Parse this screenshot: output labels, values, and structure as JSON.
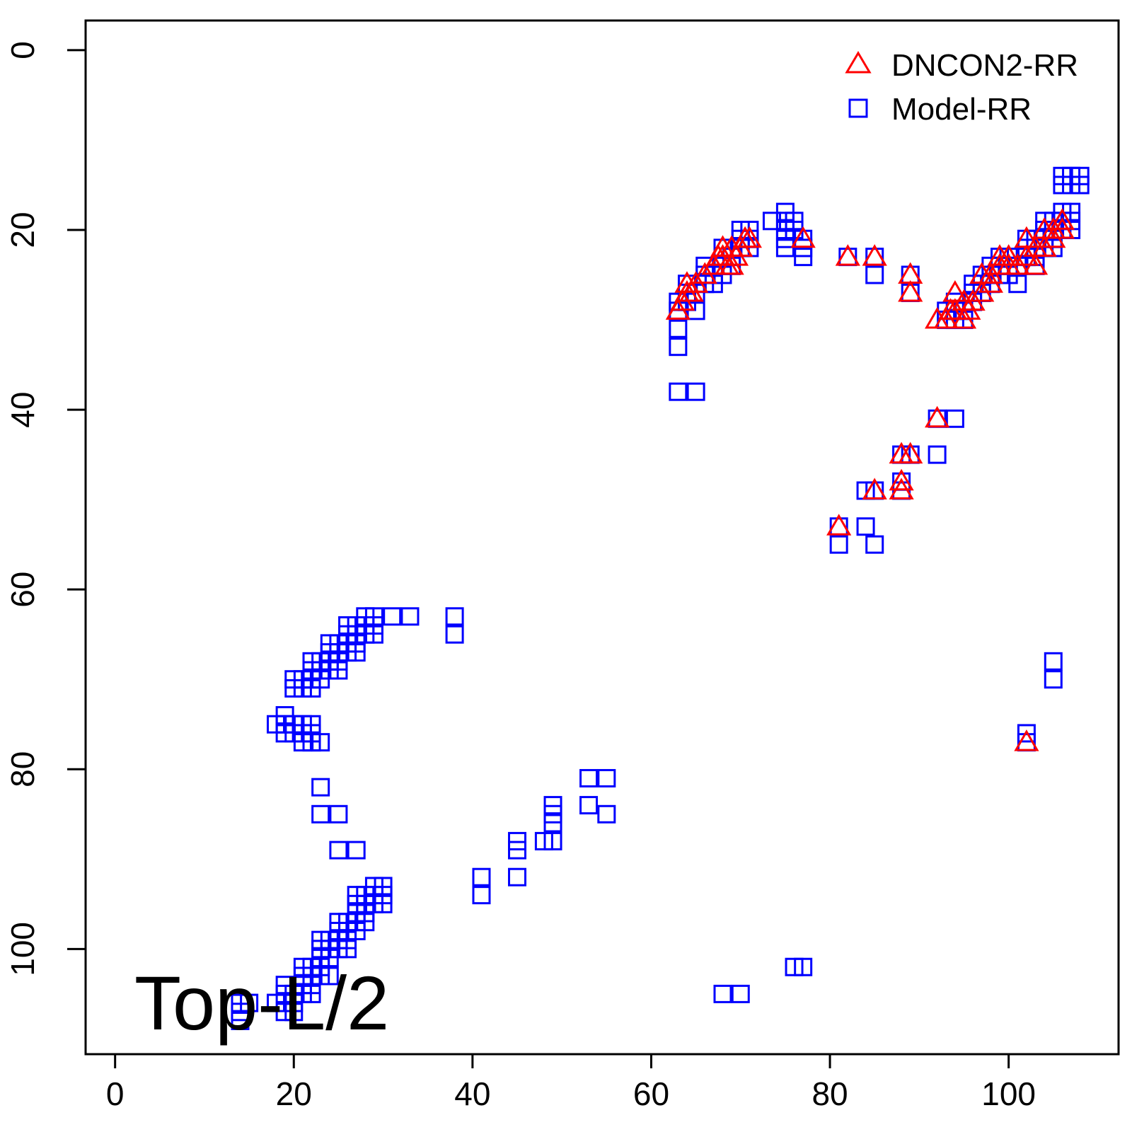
{
  "chart_data": {
    "type": "scatter",
    "title": "",
    "xlabel": "",
    "ylabel": "",
    "xlim": [
      -3.3,
      112.3
    ],
    "ylim": [
      111.7,
      -3.3
    ],
    "y_reversed": true,
    "xticks": [
      0,
      20,
      40,
      60,
      80,
      100
    ],
    "yticks": [
      0,
      20,
      40,
      60,
      80,
      100
    ],
    "xtick_labels": [
      "0",
      "20",
      "40",
      "60",
      "80",
      "100"
    ],
    "ytick_labels": [
      "0",
      "20",
      "40",
      "60",
      "80",
      "100"
    ],
    "grid": false,
    "legend_position": "top-right",
    "annotation": "Top-L/2",
    "series": [
      {
        "name": "DNCON2-RR",
        "marker": "triangle",
        "color": "#ff0000",
        "points": [
          [
            63,
            29
          ],
          [
            63.5,
            28
          ],
          [
            64,
            27
          ],
          [
            64,
            26
          ],
          [
            64.5,
            27
          ],
          [
            65,
            26
          ],
          [
            66,
            25
          ],
          [
            67,
            24
          ],
          [
            67.5,
            23
          ],
          [
            68,
            22
          ],
          [
            68,
            23
          ],
          [
            68.5,
            24
          ],
          [
            69,
            22
          ],
          [
            69,
            24
          ],
          [
            69.5,
            23
          ],
          [
            70,
            22
          ],
          [
            70.5,
            21
          ],
          [
            71,
            21
          ],
          [
            77,
            21
          ],
          [
            82,
            23
          ],
          [
            85,
            23
          ],
          [
            89,
            25
          ],
          [
            89,
            27
          ],
          [
            92,
            30
          ],
          [
            93,
            30
          ],
          [
            93.5,
            29
          ],
          [
            94,
            27
          ],
          [
            94,
            29
          ],
          [
            95,
            28
          ],
          [
            95,
            30
          ],
          [
            95.5,
            29
          ],
          [
            96,
            28
          ],
          [
            97,
            27
          ],
          [
            97,
            25
          ],
          [
            98,
            26
          ],
          [
            98,
            25
          ],
          [
            99,
            23
          ],
          [
            99,
            24
          ],
          [
            100,
            24
          ],
          [
            100,
            23
          ],
          [
            101,
            24
          ],
          [
            102,
            23
          ],
          [
            102,
            21
          ],
          [
            103,
            22
          ],
          [
            103,
            24
          ],
          [
            104,
            22
          ],
          [
            104,
            20
          ],
          [
            105,
            21
          ],
          [
            105,
            20
          ],
          [
            106,
            19
          ],
          [
            106,
            20
          ],
          [
            92,
            41
          ],
          [
            88,
            45
          ],
          [
            89,
            45
          ],
          [
            88,
            48
          ],
          [
            85,
            49
          ],
          [
            88,
            49
          ],
          [
            81,
            53
          ],
          [
            102,
            77
          ]
        ]
      },
      {
        "name": "Model-RR",
        "marker": "square",
        "color": "#0000ff",
        "points": [
          [
            63,
            28
          ],
          [
            63,
            29
          ],
          [
            63,
            31
          ],
          [
            63,
            33
          ],
          [
            63,
            38
          ],
          [
            65,
            38
          ],
          [
            64,
            26
          ],
          [
            64,
            27
          ],
          [
            64,
            28
          ],
          [
            65,
            27
          ],
          [
            65,
            29
          ],
          [
            66,
            24
          ],
          [
            66,
            25
          ],
          [
            66,
            26
          ],
          [
            67,
            25
          ],
          [
            67,
            26
          ],
          [
            68,
            22
          ],
          [
            68,
            24
          ],
          [
            68,
            25
          ],
          [
            69,
            23
          ],
          [
            69,
            24
          ],
          [
            70,
            20
          ],
          [
            70,
            21
          ],
          [
            70,
            22
          ],
          [
            71,
            20
          ],
          [
            71,
            21
          ],
          [
            71,
            22
          ],
          [
            73.5,
            19
          ],
          [
            75,
            18
          ],
          [
            75,
            19
          ],
          [
            75,
            20
          ],
          [
            75,
            21
          ],
          [
            75,
            22
          ],
          [
            76,
            19
          ],
          [
            76,
            20
          ],
          [
            77,
            21
          ],
          [
            77,
            22
          ],
          [
            77,
            23
          ],
          [
            82,
            23
          ],
          [
            85,
            23
          ],
          [
            85,
            25
          ],
          [
            89,
            25
          ],
          [
            89,
            27
          ],
          [
            84,
            49
          ],
          [
            85,
            49
          ],
          [
            84,
            53
          ],
          [
            85,
            55
          ],
          [
            81,
            53
          ],
          [
            81,
            55
          ],
          [
            88,
            45
          ],
          [
            89,
            45
          ],
          [
            88,
            48
          ],
          [
            88,
            49
          ],
          [
            92,
            41
          ],
          [
            94,
            41
          ],
          [
            92,
            45
          ],
          [
            93,
            29
          ],
          [
            93,
            30
          ],
          [
            94,
            28
          ],
          [
            94,
            29
          ],
          [
            94,
            30
          ],
          [
            95,
            29
          ],
          [
            95,
            30
          ],
          [
            96,
            26
          ],
          [
            96,
            27
          ],
          [
            96,
            28
          ],
          [
            97,
            25
          ],
          [
            97,
            26
          ],
          [
            97,
            27
          ],
          [
            98,
            24
          ],
          [
            98,
            25
          ],
          [
            98,
            26
          ],
          [
            99,
            23
          ],
          [
            99,
            24
          ],
          [
            99,
            25
          ],
          [
            100,
            23
          ],
          [
            100,
            24
          ],
          [
            100,
            25
          ],
          [
            101,
            24
          ],
          [
            101,
            26
          ],
          [
            102,
            21
          ],
          [
            102,
            22
          ],
          [
            102,
            23
          ],
          [
            103,
            21
          ],
          [
            103,
            22
          ],
          [
            103,
            23
          ],
          [
            103,
            24
          ],
          [
            104,
            19
          ],
          [
            104,
            20
          ],
          [
            104,
            21
          ],
          [
            104,
            22
          ],
          [
            105,
            19
          ],
          [
            105,
            20
          ],
          [
            105,
            21
          ],
          [
            105,
            22
          ],
          [
            106,
            18
          ],
          [
            106,
            19
          ],
          [
            106,
            20
          ],
          [
            107,
            18
          ],
          [
            107,
            19
          ],
          [
            107,
            20
          ],
          [
            106,
            14
          ],
          [
            106,
            15
          ],
          [
            107,
            14
          ],
          [
            107,
            15
          ],
          [
            108,
            14
          ],
          [
            108,
            15
          ],
          [
            105,
            68
          ],
          [
            105,
            70
          ],
          [
            102,
            76
          ],
          [
            102,
            77
          ],
          [
            14,
            106
          ],
          [
            14,
            107
          ],
          [
            15,
            106
          ],
          [
            14,
            108
          ],
          [
            18,
            75
          ],
          [
            18,
            106
          ],
          [
            19,
            74
          ],
          [
            19,
            75
          ],
          [
            19,
            76
          ],
          [
            19,
            104
          ],
          [
            19,
            105
          ],
          [
            19,
            107
          ],
          [
            20,
            70
          ],
          [
            20,
            71
          ],
          [
            20,
            75
          ],
          [
            20,
            76
          ],
          [
            20,
            105
          ],
          [
            20,
            106
          ],
          [
            20,
            107
          ],
          [
            21,
            70
          ],
          [
            21,
            71
          ],
          [
            21,
            75
          ],
          [
            21,
            76
          ],
          [
            21,
            77
          ],
          [
            21,
            102
          ],
          [
            21,
            103
          ],
          [
            21,
            104
          ],
          [
            21,
            105
          ],
          [
            22,
            68
          ],
          [
            22,
            69
          ],
          [
            22,
            70
          ],
          [
            22,
            71
          ],
          [
            22,
            75
          ],
          [
            22,
            76
          ],
          [
            22,
            77
          ],
          [
            22,
            102
          ],
          [
            22,
            103
          ],
          [
            22,
            104
          ],
          [
            22,
            105
          ],
          [
            23,
            68
          ],
          [
            23,
            69
          ],
          [
            23,
            70
          ],
          [
            23,
            77
          ],
          [
            23,
            82
          ],
          [
            23,
            85
          ],
          [
            23,
            99
          ],
          [
            23,
            100
          ],
          [
            23,
            101
          ],
          [
            23,
            102
          ],
          [
            23,
            103
          ],
          [
            24,
            66
          ],
          [
            24,
            67
          ],
          [
            24,
            68
          ],
          [
            24,
            69
          ],
          [
            24,
            99
          ],
          [
            24,
            100
          ],
          [
            24,
            101
          ],
          [
            24,
            103
          ],
          [
            25,
            66
          ],
          [
            25,
            67
          ],
          [
            25,
            68
          ],
          [
            25,
            69
          ],
          [
            25,
            85
          ],
          [
            25,
            89
          ],
          [
            25,
            97
          ],
          [
            25,
            98
          ],
          [
            25,
            99
          ],
          [
            25,
            100
          ],
          [
            26,
            64
          ],
          [
            26,
            65
          ],
          [
            26,
            66
          ],
          [
            26,
            67
          ],
          [
            26,
            97
          ],
          [
            26,
            98
          ],
          [
            26,
            99
          ],
          [
            26,
            100
          ],
          [
            27,
            64
          ],
          [
            27,
            65
          ],
          [
            27,
            66
          ],
          [
            27,
            67
          ],
          [
            27,
            89
          ],
          [
            27,
            94
          ],
          [
            27,
            95
          ],
          [
            27,
            96
          ],
          [
            27,
            97
          ],
          [
            27,
            98
          ],
          [
            28,
            63
          ],
          [
            28,
            64
          ],
          [
            28,
            65
          ],
          [
            28,
            94
          ],
          [
            28,
            95
          ],
          [
            28,
            96
          ],
          [
            28,
            97
          ],
          [
            29,
            63
          ],
          [
            29,
            64
          ],
          [
            29,
            65
          ],
          [
            29,
            93
          ],
          [
            29,
            94
          ],
          [
            29,
            95
          ],
          [
            30,
            93
          ],
          [
            30,
            94
          ],
          [
            30,
            95
          ],
          [
            31,
            63
          ],
          [
            33,
            63
          ],
          [
            38,
            63
          ],
          [
            38,
            65
          ],
          [
            41,
            92
          ],
          [
            41,
            94
          ],
          [
            45,
            88
          ],
          [
            45,
            89
          ],
          [
            45,
            92
          ],
          [
            48,
            88
          ],
          [
            49,
            84
          ],
          [
            49,
            85
          ],
          [
            49,
            86
          ],
          [
            49,
            88
          ],
          [
            53,
            81
          ],
          [
            53,
            84
          ],
          [
            55,
            81
          ],
          [
            55,
            85
          ],
          [
            68,
            105
          ],
          [
            70,
            105
          ],
          [
            76,
            102
          ],
          [
            77,
            102
          ]
        ]
      }
    ]
  }
}
